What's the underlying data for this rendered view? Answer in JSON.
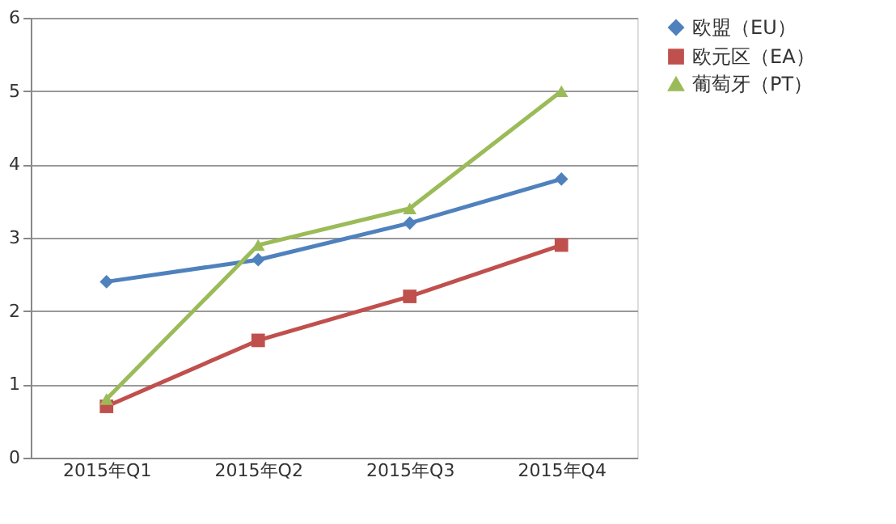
{
  "chart_data": {
    "type": "line",
    "categories": [
      "2015年Q1",
      "2015年Q2",
      "2015年Q3",
      "2015年Q4"
    ],
    "series": [
      {
        "name": "欧盟（EU）",
        "color": "#4f81bd",
        "marker": "diamond",
        "values": [
          2.4,
          2.7,
          3.2,
          3.8
        ]
      },
      {
        "name": "欧元区（EA）",
        "color": "#c0504d",
        "marker": "square",
        "values": [
          0.7,
          1.6,
          2.2,
          2.9
        ]
      },
      {
        "name": "葡萄牙（PT）",
        "color": "#9bbb59",
        "marker": "triangle",
        "values": [
          0.8,
          2.9,
          3.4,
          5.0
        ]
      }
    ],
    "ylim": [
      0,
      6
    ],
    "yticks": [
      0,
      1,
      2,
      3,
      4,
      5,
      6
    ],
    "grid": "y",
    "legend": "right",
    "line_style": "solid"
  }
}
